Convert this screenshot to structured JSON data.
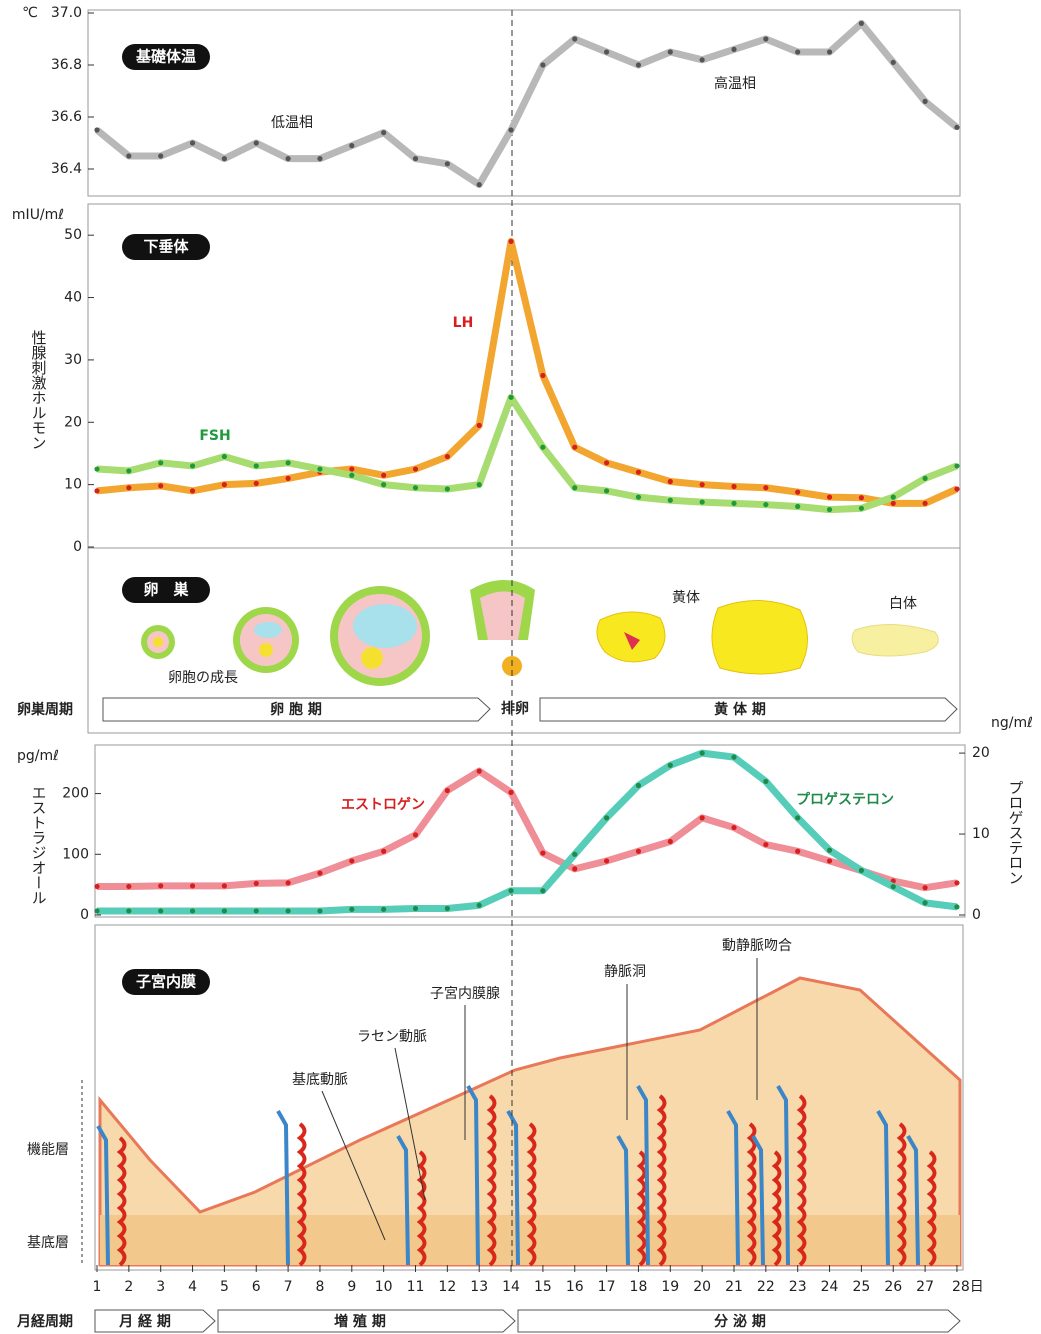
{
  "chart_data": [
    {
      "type": "line",
      "panel_label": "基礎体温",
      "unit": "℃",
      "annotations": [
        "低温相",
        "高温相"
      ],
      "x": [
        1,
        2,
        3,
        4,
        5,
        6,
        7,
        8,
        9,
        10,
        11,
        12,
        13,
        14,
        15,
        16,
        17,
        18,
        19,
        20,
        21,
        22,
        23,
        24,
        25,
        26,
        27,
        28
      ],
      "values": [
        36.55,
        36.45,
        36.45,
        36.5,
        36.44,
        36.5,
        36.44,
        36.44,
        36.49,
        36.54,
        36.44,
        36.42,
        36.34,
        36.55,
        36.8,
        36.9,
        36.85,
        36.8,
        36.85,
        36.82,
        36.86,
        36.9,
        36.85,
        36.85,
        36.96,
        36.81,
        36.66,
        36.56
      ],
      "color": "#b8b8b8",
      "marker_color": "#555555",
      "ylim": [
        36.3,
        37.0
      ],
      "yticks": [
        36.4,
        36.6,
        36.8,
        {
          "value": 37,
          "label": "37.0"
        }
      ]
    },
    {
      "type": "line",
      "panel_label": "下垂体",
      "unit": "mIU/mℓ",
      "ylabel": "性腺刺激ホルモン",
      "x": [
        1,
        2,
        3,
        4,
        5,
        6,
        7,
        8,
        9,
        10,
        11,
        12,
        13,
        14,
        15,
        16,
        17,
        18,
        19,
        20,
        21,
        22,
        23,
        24,
        25,
        26,
        27,
        28
      ],
      "series": [
        {
          "name": "LH",
          "color": "#f2a630",
          "marker_color": "#d62020",
          "values": [
            9,
            9.5,
            9.8,
            9,
            10,
            10.2,
            11,
            12,
            12.5,
            11.5,
            12.5,
            14.5,
            19.5,
            49,
            27.5,
            16,
            13.5,
            12,
            10.5,
            10,
            9.7,
            9.5,
            8.8,
            8,
            7.9,
            7,
            7,
            9.3
          ]
        },
        {
          "name": "FSH",
          "color": "#a6dc70",
          "marker_color": "#1f9a3a",
          "values": [
            12.5,
            12.2,
            13.5,
            13,
            14.5,
            13,
            13.5,
            12.5,
            11.5,
            10,
            9.5,
            9.3,
            10,
            24,
            16,
            9.5,
            9,
            8,
            7.5,
            7.2,
            7,
            6.8,
            6.5,
            6,
            6.2,
            8,
            11,
            13
          ]
        }
      ],
      "ylim": [
        0,
        55
      ],
      "yticks": [
        0,
        10,
        20,
        30,
        40,
        50
      ]
    },
    {
      "type": "line",
      "unit": "pg/mℓ",
      "ylabel": "エストラジオール",
      "y2unit": "ng/mℓ",
      "y2label": "プロゲステロン",
      "x": [
        1,
        2,
        3,
        4,
        5,
        6,
        7,
        8,
        9,
        10,
        11,
        12,
        13,
        14,
        15,
        16,
        17,
        18,
        19,
        20,
        21,
        22,
        23,
        24,
        25,
        26,
        27,
        28
      ],
      "series": [
        {
          "name": "エストロゲン",
          "color": "#ef8e96",
          "marker_color": "#d62020",
          "values": [
            47,
            47,
            48,
            48,
            48,
            52,
            53,
            69,
            89,
            105,
            132,
            205,
            237,
            202,
            102,
            76,
            89,
            105,
            121,
            160,
            144,
            116,
            105,
            89,
            73,
            56,
            45,
            53
          ]
        },
        {
          "name": "プロゲステロン",
          "color": "#55cdb8",
          "marker_color": "#1f8a4a",
          "axis": "y2",
          "values": [
            0.5,
            0.5,
            0.5,
            0.5,
            0.5,
            0.5,
            0.5,
            0.5,
            0.7,
            0.7,
            0.8,
            0.8,
            1.2,
            3,
            3,
            7.5,
            12,
            16,
            18.5,
            20,
            19.5,
            16.5,
            12,
            8,
            5.5,
            3.5,
            1.5,
            1
          ]
        }
      ],
      "ylim": [
        0,
        280
      ],
      "yticks": [
        0,
        100,
        200
      ],
      "y2lim": [
        0,
        21
      ],
      "y2ticks": [
        0,
        10,
        20
      ]
    }
  ],
  "ovary": {
    "panel_label": "卵　巣",
    "labels": [
      "卵胞の成長",
      "黄体",
      "白体"
    ],
    "cycle_label": "卵巣周期",
    "phases": [
      "卵 胞 期",
      "排卵",
      "黄 体 期"
    ]
  },
  "endometrium": {
    "panel_label": "子宮内膜",
    "labels": [
      "子宮内膜腺",
      "ラセン動脈",
      "基底動脈",
      "静脈洞",
      "動静脈吻合"
    ],
    "layers": [
      "機能層",
      "基底層"
    ]
  },
  "day_axis": {
    "xticks": [
      1,
      2,
      3,
      4,
      5,
      6,
      7,
      8,
      9,
      10,
      11,
      12,
      13,
      14,
      15,
      16,
      17,
      18,
      19,
      20,
      21,
      22,
      23,
      24,
      25,
      26,
      27,
      {
        "value": 28,
        "label": "28日"
      }
    ]
  },
  "menstrual_cycle": {
    "label": "月経周期",
    "phases": [
      "月 経 期",
      "増 殖 期",
      "分 泌 期"
    ]
  }
}
